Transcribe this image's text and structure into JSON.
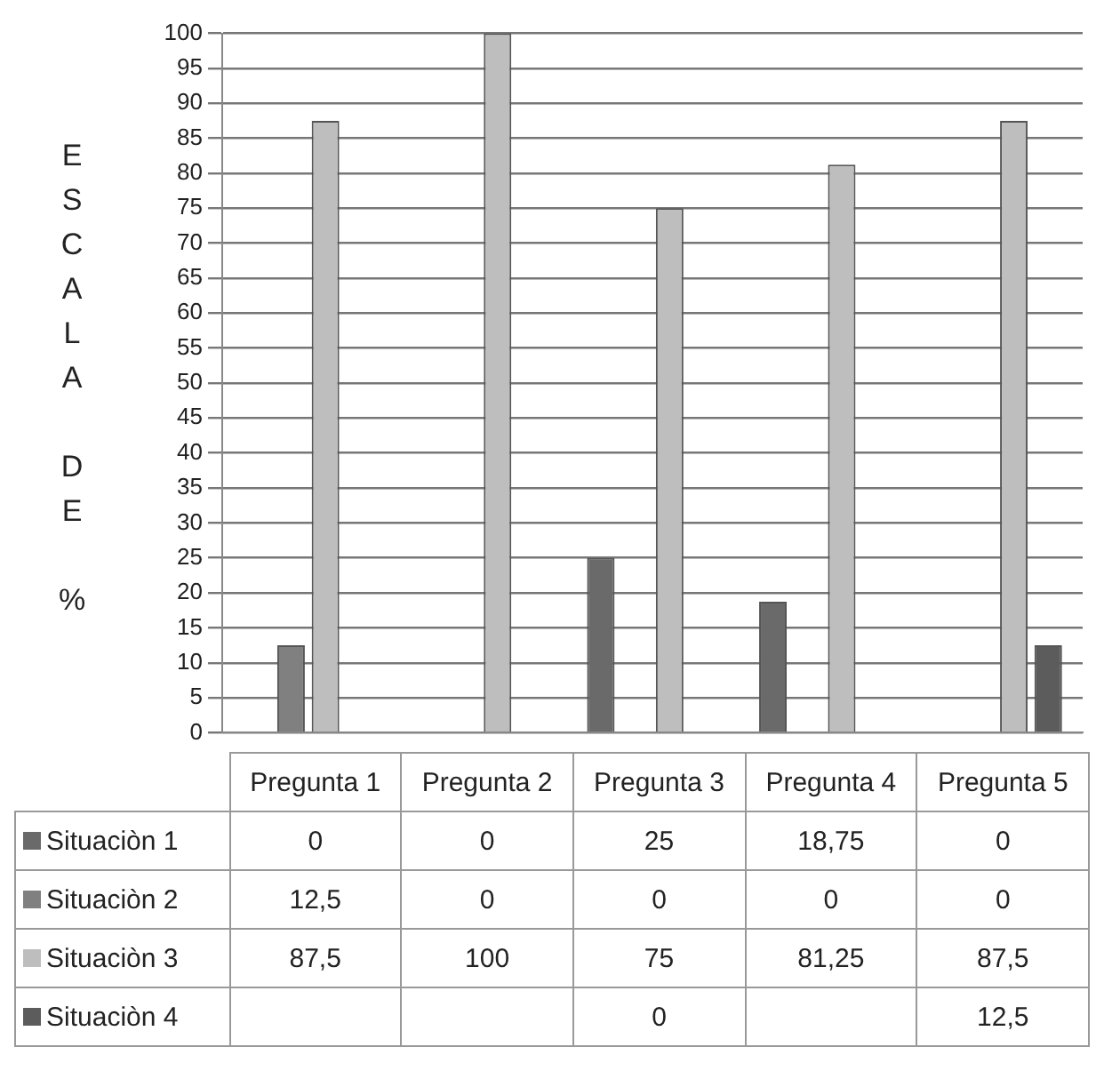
{
  "chart_data": {
    "type": "bar",
    "ylabel": "ESCALA DE %",
    "categories": [
      "Pregunta 1",
      "Pregunta 2",
      "Pregunta 3",
      "Pregunta 4",
      "Pregunta 5"
    ],
    "series": [
      {
        "name": "Situaciòn 1",
        "color": "#6a6a6a",
        "values": [
          0,
          0,
          25,
          18.75,
          0
        ],
        "value_labels": [
          "0",
          "0",
          "25",
          "18,75",
          "0"
        ]
      },
      {
        "name": "Situaciòn 2",
        "color": "#808080",
        "values": [
          12.5,
          0,
          0,
          0,
          0
        ],
        "value_labels": [
          "12,5",
          "0",
          "0",
          "0",
          "0"
        ]
      },
      {
        "name": "Situaciòn 3",
        "color": "#bebebe",
        "values": [
          87.5,
          100,
          75,
          81.25,
          87.5
        ],
        "value_labels": [
          "87,5",
          "100",
          "75",
          "81,25",
          "87,5"
        ]
      },
      {
        "name": "Situaciòn 4",
        "color": "#5c5c5c",
        "values": [
          null,
          null,
          0,
          null,
          12.5
        ],
        "value_labels": [
          null,
          null,
          "0",
          null,
          "12,5"
        ]
      }
    ],
    "ylim": [
      0,
      100
    ],
    "yticks": [
      0,
      5,
      10,
      15,
      20,
      25,
      30,
      35,
      40,
      45,
      50,
      55,
      60,
      65,
      70,
      75,
      80,
      85,
      90,
      95,
      100
    ],
    "grid": "y",
    "legend": "bottom"
  }
}
